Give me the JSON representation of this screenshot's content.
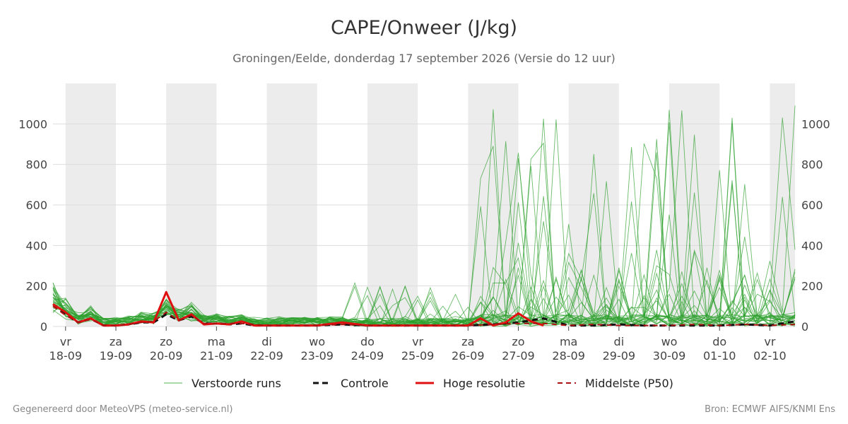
{
  "header": {
    "title": "CAPE/Onweer (J/kg)",
    "subtitle": "Groningen/Eelde, donderdag 17 september 2026 (Versie do 12 uur)"
  },
  "footer": {
    "left": "Gegenereerd door MeteoVPS (meteo-service.nl)",
    "right": "Bron: ECMWF AIFS/KNMI Ens"
  },
  "colors": {
    "ensemble": "#2ca02c",
    "control": "#111111",
    "high_res": "#e01010",
    "median": "#aa1111",
    "weekend_band": "#ececec",
    "grid": "#dddddd"
  },
  "chart_data": {
    "type": "line",
    "title": "CAPE/Onweer (J/kg)",
    "ylim": [
      0,
      1200
    ],
    "yticks": [
      0,
      200,
      400,
      600,
      800,
      1000
    ],
    "xlim_days": [
      -0.25,
      14.5
    ],
    "x_day_labels": [
      {
        "day": "vr",
        "date": "18-09"
      },
      {
        "day": "za",
        "date": "19-09"
      },
      {
        "day": "zo",
        "date": "20-09"
      },
      {
        "day": "ma",
        "date": "21-09"
      },
      {
        "day": "di",
        "date": "22-09"
      },
      {
        "day": "wo",
        "date": "23-09"
      },
      {
        "day": "do",
        "date": "24-09"
      },
      {
        "day": "vr",
        "date": "25-09"
      },
      {
        "day": "za",
        "date": "26-09"
      },
      {
        "day": "zo",
        "date": "27-09"
      },
      {
        "day": "ma",
        "date": "28-09"
      },
      {
        "day": "di",
        "date": "29-09"
      },
      {
        "day": "wo",
        "date": "30-09"
      },
      {
        "day": "do",
        "date": "01-10"
      },
      {
        "day": "vr",
        "date": "02-10"
      }
    ],
    "shaded_day_bands": [
      [
        0,
        1
      ],
      [
        2,
        3
      ],
      [
        4,
        5
      ],
      [
        6,
        7
      ],
      [
        8,
        9
      ],
      [
        10,
        11
      ],
      [
        12,
        13
      ],
      [
        14,
        14.5
      ]
    ],
    "grid": true,
    "legend": {
      "position": "bottom",
      "entries": [
        {
          "label": "Verstoorde runs",
          "style": "thin-green"
        },
        {
          "label": "Controle",
          "style": "dashed-black"
        },
        {
          "label": "Hoge resolutie",
          "style": "solid-red"
        },
        {
          "label": "Middelste (P50)",
          "style": "dashed-darkred"
        }
      ]
    },
    "series": [
      {
        "name": "Controle",
        "x": [
          -0.25,
          0,
          0.25,
          0.5,
          0.75,
          1,
          1.25,
          1.5,
          1.75,
          2,
          2.25,
          2.5,
          2.75,
          3,
          3.25,
          3.5,
          3.75,
          4,
          4.5,
          5,
          5.5,
          6,
          6.5,
          7,
          7.5,
          8,
          8.5,
          9,
          9.5,
          10,
          10.5,
          11,
          11.5,
          12,
          12.5,
          13,
          13.5,
          14,
          14.5
        ],
        "values": [
          110,
          60,
          20,
          40,
          5,
          5,
          10,
          20,
          20,
          60,
          30,
          50,
          15,
          15,
          10,
          15,
          5,
          5,
          5,
          5,
          10,
          5,
          5,
          5,
          5,
          5,
          10,
          20,
          40,
          5,
          5,
          10,
          5,
          5,
          5,
          5,
          10,
          5,
          25
        ]
      },
      {
        "name": "Hoge resolutie",
        "x": [
          -0.25,
          0,
          0.25,
          0.5,
          0.75,
          1,
          1.25,
          1.5,
          1.75,
          2,
          2.25,
          2.5,
          2.75,
          3,
          3.25,
          3.5,
          3.75,
          4,
          4.5,
          5,
          5.5,
          6,
          6.5,
          7,
          7.5,
          8,
          8.25,
          8.5,
          8.75,
          9,
          9.25,
          9.5
        ],
        "values": [
          110,
          70,
          20,
          40,
          5,
          5,
          10,
          25,
          20,
          170,
          30,
          60,
          10,
          15,
          10,
          25,
          5,
          5,
          5,
          5,
          20,
          5,
          5,
          5,
          5,
          5,
          40,
          5,
          20,
          65,
          25,
          5
        ]
      },
      {
        "name": "Middelste (P50)",
        "x": [
          -0.25,
          0,
          0.25,
          0.5,
          0.75,
          1,
          1.25,
          1.5,
          1.75,
          2,
          2.25,
          2.5,
          2.75,
          3,
          3.5,
          4,
          4.5,
          5,
          5.5,
          6,
          6.5,
          7,
          7.5,
          8,
          8.5,
          9,
          9.5,
          10,
          10.5,
          11,
          11.5,
          12,
          12.5,
          13,
          13.5,
          14,
          14.5
        ],
        "values": [
          100,
          55,
          20,
          35,
          5,
          5,
          10,
          20,
          25,
          70,
          30,
          55,
          15,
          15,
          15,
          5,
          5,
          5,
          10,
          5,
          5,
          5,
          5,
          5,
          10,
          15,
          15,
          5,
          10,
          5,
          5,
          5,
          10,
          5,
          10,
          5,
          10
        ]
      }
    ]
  }
}
